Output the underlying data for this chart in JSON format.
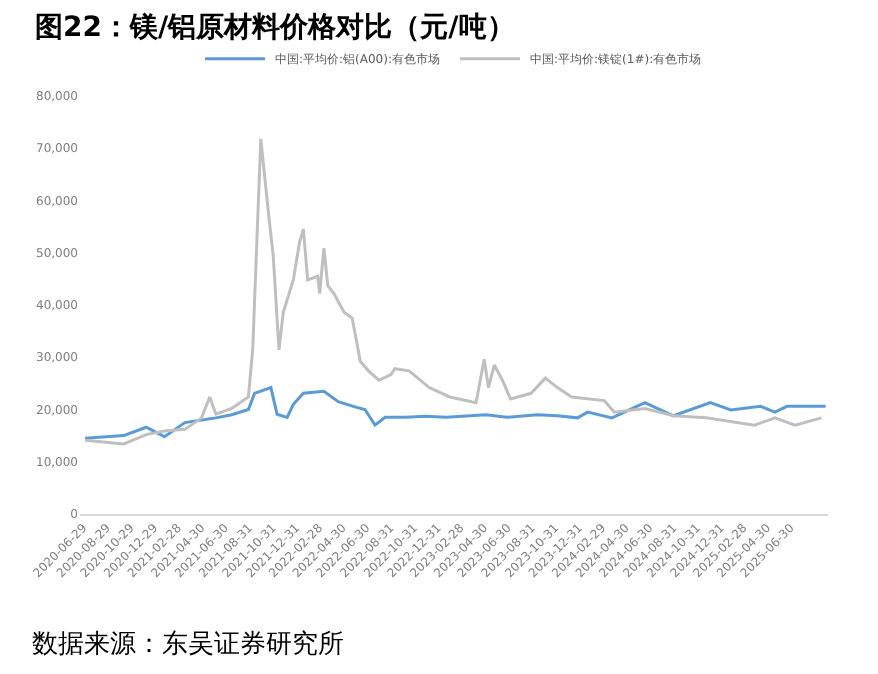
{
  "chart_data": {
    "type": "line",
    "title": "图22：镁/铝原材料价格对比（元/吨）",
    "annotations": [
      "数据来源：东吴证券研究所"
    ],
    "legend": "top",
    "grid": false,
    "marker": "none",
    "line_style": "solid",
    "xlim": [
      "2020-06-21",
      "2025-10-05"
    ],
    "xticks": [
      {
        "value": "2020-06-29",
        "label": "2020-06-29"
      },
      {
        "value": "2020-08-29",
        "label": "2020-08-29"
      },
      {
        "value": "2020-10-29",
        "label": "2020-10-29"
      },
      {
        "value": "2020-12-29",
        "label": "2020-12-29"
      },
      {
        "value": "2021-02-28",
        "label": "2021-02-28"
      },
      {
        "value": "2021-04-30",
        "label": "2021-04-30"
      },
      {
        "value": "2021-06-30",
        "label": "2021-06-30"
      },
      {
        "value": "2021-08-31",
        "label": "2021-08-31"
      },
      {
        "value": "2021-10-31",
        "label": "2021-10-31"
      },
      {
        "value": "2021-12-31",
        "label": "2021-12-31"
      },
      {
        "value": "2022-02-28",
        "label": "2022-02-28"
      },
      {
        "value": "2022-04-30",
        "label": "2022-04-30"
      },
      {
        "value": "2022-06-30",
        "label": "2022-06-30"
      },
      {
        "value": "2022-08-31",
        "label": "2022-08-31"
      },
      {
        "value": "2022-10-31",
        "label": "2022-10-31"
      },
      {
        "value": "2022-12-31",
        "label": "2022-12-31"
      },
      {
        "value": "2023-02-28",
        "label": "2023-02-28"
      },
      {
        "value": "2023-04-30",
        "label": "2023-04-30"
      },
      {
        "value": "2023-06-30",
        "label": "2023-06-30"
      },
      {
        "value": "2023-08-31",
        "label": "2023-08-31"
      },
      {
        "value": "2023-10-31",
        "label": "2023-10-31"
      },
      {
        "value": "2023-12-31",
        "label": "2023-12-31"
      },
      {
        "value": "2024-02-29",
        "label": "2024-02-29"
      },
      {
        "value": "2024-04-30",
        "label": "2024-04-30"
      },
      {
        "value": "2024-06-30",
        "label": "2024-06-30"
      },
      {
        "value": "2024-08-31",
        "label": "2024-08-31"
      },
      {
        "value": "2024-10-31",
        "label": "2024-10-31"
      },
      {
        "value": "2024-12-31",
        "label": "2024-12-31"
      },
      {
        "value": "2025-02-28",
        "label": "2025-02-28"
      },
      {
        "value": "2025-04-30",
        "label": "2025-04-30"
      },
      {
        "value": "2025-06-30",
        "label": "2025-06-30"
      }
    ],
    "ylim": [
      0,
      80000
    ],
    "yticks": [
      0,
      {
        "value": 10000,
        "label": "10,000"
      },
      {
        "value": 20000,
        "label": "20,000"
      },
      {
        "value": 30000,
        "label": "30,000"
      },
      {
        "value": 40000,
        "label": "40,000"
      },
      {
        "value": 50000,
        "label": "50,000"
      },
      {
        "value": 60000,
        "label": "60,000"
      },
      {
        "value": 70000,
        "label": "70,000"
      },
      {
        "value": 80000,
        "label": "80,000"
      }
    ],
    "series": [
      {
        "name": "中国:平均价:铝(A00):有色市场",
        "color": "#5b9bd5",
        "x": [
          "2020-07-04",
          "2020-10-12",
          "2020-12-09",
          "2021-01-25",
          "2021-03-19",
          "2021-05-01",
          "2021-06-07",
          "2021-07-18",
          "2021-08-30",
          "2021-09-15",
          "2021-10-27",
          "2021-11-12",
          "2021-12-08",
          "2021-12-24",
          "2022-01-19",
          "2022-03-13",
          "2022-04-19",
          "2022-06-01",
          "2022-06-27",
          "2022-07-23",
          "2022-08-18",
          "2022-10-10",
          "2022-12-01",
          "2023-01-23",
          "2023-05-06",
          "2023-06-28",
          "2023-09-15",
          "2023-11-06",
          "2023-12-28",
          "2024-01-23",
          "2024-03-26",
          "2024-06-19",
          "2024-09-01",
          "2024-12-05",
          "2025-01-27",
          "2025-04-14",
          "2025-05-21",
          "2025-06-21",
          "2025-09-29"
        ],
        "values": [
          14500,
          15000,
          16600,
          14800,
          17500,
          18000,
          18400,
          19000,
          20000,
          23100,
          24200,
          19100,
          18500,
          21000,
          23100,
          23500,
          21500,
          20500,
          20000,
          17000,
          18500,
          18500,
          18700,
          18500,
          19000,
          18500,
          19000,
          18800,
          18400,
          19500,
          18400,
          21300,
          18800,
          21300,
          19900,
          20600,
          19500,
          20600,
          20600
        ]
      },
      {
        "name": "中国:平均价:镁锭(1#):有色市场",
        "color": "#bfbfbf",
        "x": [
          "2020-07-04",
          "2020-10-12",
          "2020-12-09",
          "2021-01-25",
          "2021-03-19",
          "2021-05-01",
          "2021-05-22",
          "2021-06-07",
          "2021-07-18",
          "2021-08-30",
          "2021-09-10",
          "2021-10-01",
          "2021-10-22",
          "2021-11-02",
          "2021-11-17",
          "2021-11-28",
          "2021-12-24",
          "2022-01-09",
          "2022-01-19",
          "2022-01-30",
          "2022-02-25",
          "2022-03-02",
          "2022-03-13",
          "2022-03-23",
          "2022-04-08",
          "2022-05-04",
          "2022-05-25",
          "2022-06-15",
          "2022-07-06",
          "2022-08-02",
          "2022-09-02",
          "2022-09-12",
          "2022-10-19",
          "2022-12-10",
          "2023-02-01",
          "2023-04-10",
          "2023-05-01",
          "2023-05-12",
          "2023-05-27",
          "2023-06-17",
          "2023-07-08",
          "2023-08-30",
          "2023-10-06",
          "2023-11-06",
          "2023-12-13",
          "2024-03-06",
          "2024-04-01",
          "2024-06-19",
          "2024-09-01",
          "2024-11-24",
          "2025-03-29",
          "2025-05-21",
          "2025-07-12",
          "2025-09-18"
        ],
        "values": [
          14100,
          13400,
          15200,
          15900,
          16200,
          18400,
          22400,
          19100,
          20200,
          22400,
          31400,
          71800,
          56700,
          49500,
          31400,
          38600,
          44800,
          52000,
          54500,
          44800,
          45500,
          42200,
          50900,
          43700,
          42200,
          38600,
          37500,
          29200,
          27400,
          25600,
          26700,
          27800,
          27400,
          24200,
          22400,
          21300,
          29600,
          24200,
          28500,
          25600,
          22000,
          23100,
          26000,
          24200,
          22400,
          21700,
          19500,
          20200,
          18800,
          18400,
          17000,
          18400,
          17000,
          18400
        ]
      }
    ]
  }
}
